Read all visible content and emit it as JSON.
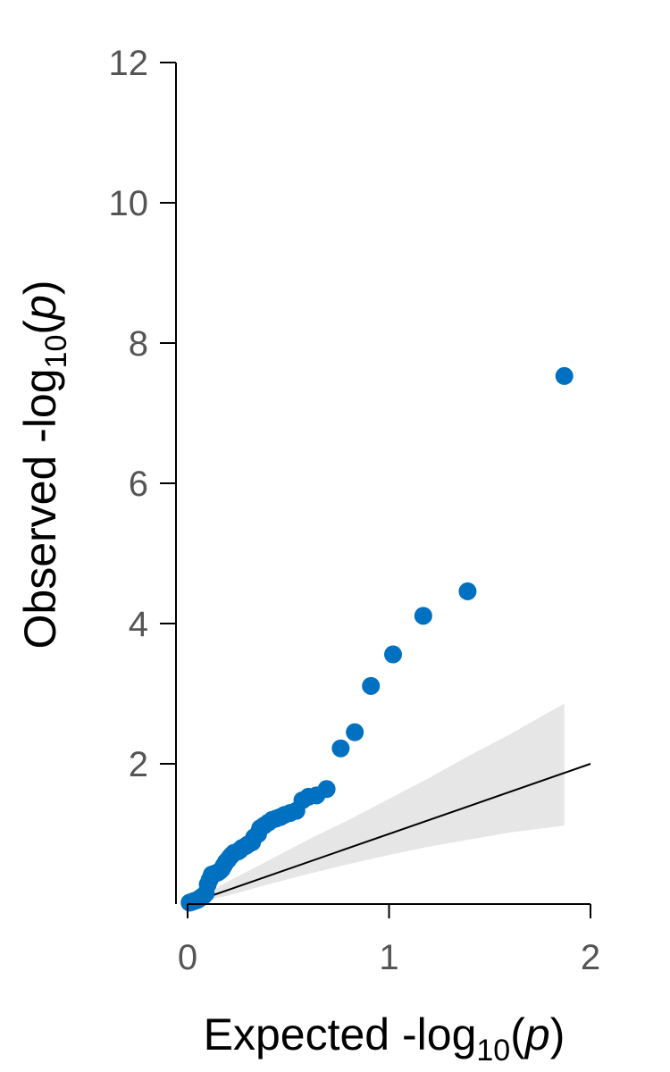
{
  "chart_data": {
    "type": "scatter",
    "xlabel": {
      "pre": "Expected -log",
      "sub": "10",
      "open": "(",
      "var": "p",
      "close": ")"
    },
    "ylabel": {
      "pre": "Observed -log",
      "sub": "10",
      "open": "(",
      "var": "p",
      "close": ")"
    },
    "xlim": [
      0,
      2
    ],
    "ylim": [
      0,
      12
    ],
    "x_ticks": [
      0,
      1,
      2
    ],
    "y_ticks": [
      2,
      4,
      6,
      8,
      10,
      12
    ],
    "x_tick_labels": [
      "0",
      "1",
      "2"
    ],
    "y_tick_labels": [
      "2",
      "4",
      "6",
      "8",
      "10",
      "12"
    ],
    "grid": false,
    "legend": "none",
    "colors": {
      "points": "#0070c0",
      "band": "#e6e6e6",
      "reference": "#000000",
      "axis": "#000000",
      "tick_label": "#555555"
    },
    "reference_line": {
      "x": [
        0,
        2
      ],
      "y": [
        0,
        2
      ]
    },
    "confidence_band": {
      "x": [
        0.05,
        0.2,
        0.4,
        0.6,
        0.8,
        1.0,
        1.2,
        1.4,
        1.6,
        1.87
      ],
      "lower": [
        0.03,
        0.12,
        0.28,
        0.43,
        0.57,
        0.7,
        0.82,
        0.92,
        1.02,
        1.12
      ],
      "upper": [
        0.08,
        0.32,
        0.62,
        0.92,
        1.2,
        1.5,
        1.8,
        2.12,
        2.42,
        2.86
      ]
    },
    "series": [
      {
        "x": [
          1.87,
          1.39,
          1.17,
          1.02,
          0.91,
          0.83,
          0.76,
          0.69,
          0.64,
          0.6,
          0.57,
          0.54,
          0.51,
          0.48,
          0.46,
          0.44,
          0.42,
          0.4,
          0.38,
          0.36,
          0.35,
          0.33,
          0.32,
          0.3,
          0.29,
          0.27,
          0.26,
          0.25,
          0.23,
          0.22,
          0.21,
          0.2,
          0.19,
          0.18,
          0.17,
          0.16,
          0.15,
          0.14,
          0.13,
          0.12,
          0.11,
          0.1,
          0.09,
          0.08,
          0.07,
          0.06,
          0.05,
          0.04,
          0.03,
          0.02,
          0.01
        ],
        "y": [
          7.53,
          4.46,
          4.11,
          3.56,
          3.11,
          2.45,
          2.22,
          1.64,
          1.55,
          1.53,
          1.48,
          1.33,
          1.3,
          1.27,
          1.24,
          1.22,
          1.2,
          1.16,
          1.12,
          1.08,
          1.0,
          0.95,
          0.88,
          0.85,
          0.83,
          0.8,
          0.77,
          0.75,
          0.73,
          0.7,
          0.67,
          0.63,
          0.6,
          0.55,
          0.5,
          0.47,
          0.45,
          0.44,
          0.43,
          0.42,
          0.35,
          0.28,
          0.15,
          0.12,
          0.1,
          0.08,
          0.06,
          0.05,
          0.04,
          0.03,
          0.02
        ]
      }
    ]
  }
}
